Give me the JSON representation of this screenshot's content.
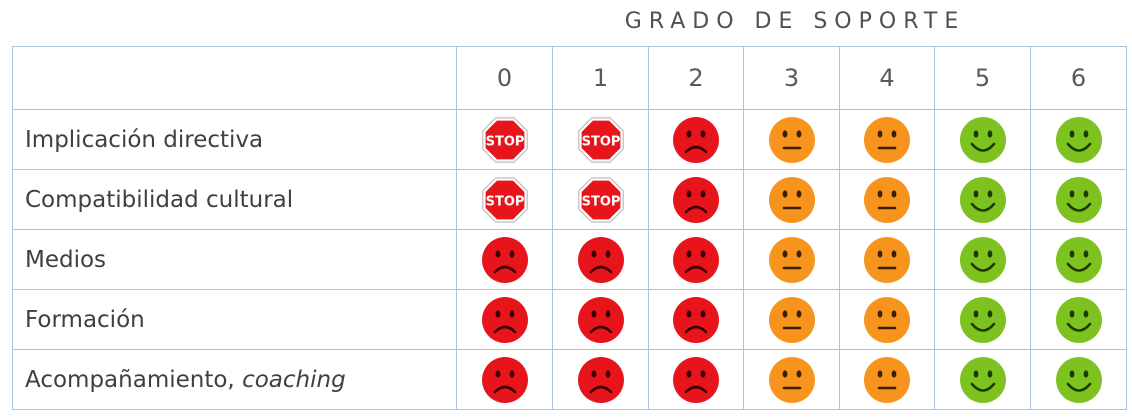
{
  "title": "GRADO DE SOPORTE",
  "columns": [
    "0",
    "1",
    "2",
    "3",
    "4",
    "5",
    "6"
  ],
  "colors": {
    "stop": "#e8141c",
    "sad": "#e8141c",
    "neutral": "#f7941d",
    "happy": "#7dc21e",
    "border": "#a9c4e0"
  },
  "rows": [
    {
      "label": "Implicación directiva",
      "label_em": "",
      "cells": [
        "stop",
        "stop",
        "sad",
        "neutral",
        "neutral",
        "happy",
        "happy"
      ]
    },
    {
      "label": "Compatibilidad cultural",
      "label_em": "",
      "cells": [
        "stop",
        "stop",
        "sad",
        "neutral",
        "neutral",
        "happy",
        "happy"
      ]
    },
    {
      "label": "Medios",
      "label_em": "",
      "cells": [
        "sad",
        "sad",
        "sad",
        "neutral",
        "neutral",
        "happy",
        "happy"
      ]
    },
    {
      "label": "Formación",
      "label_em": "",
      "cells": [
        "sad",
        "sad",
        "sad",
        "neutral",
        "neutral",
        "happy",
        "happy"
      ]
    },
    {
      "label": "Acompañamiento, ",
      "label_em": "coaching",
      "cells": [
        "sad",
        "sad",
        "sad",
        "neutral",
        "neutral",
        "happy",
        "happy"
      ]
    }
  ],
  "stop_text": "STOP"
}
